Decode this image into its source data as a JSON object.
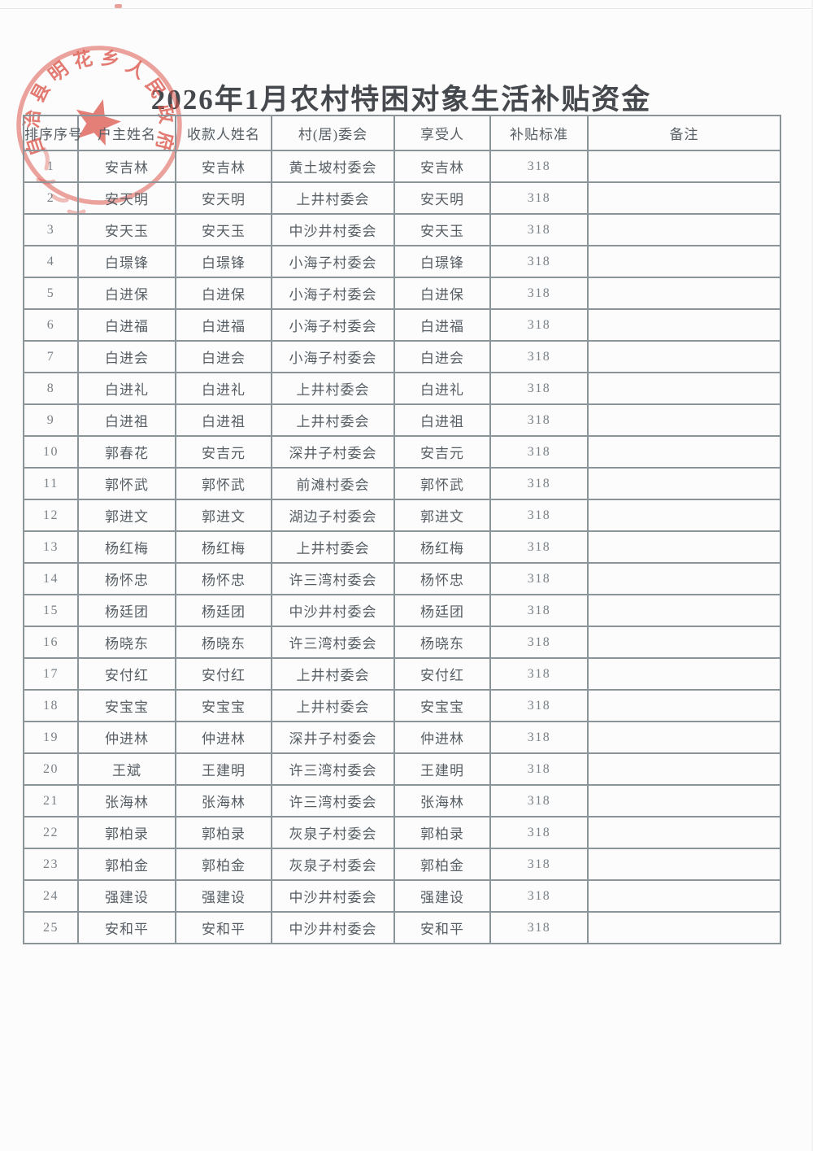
{
  "page": {
    "title": "2026年1月农村特困对象生活补贴资金"
  },
  "stamp": {
    "arc_text": "自治县明花乡人民政府",
    "shape": "round-official-seal",
    "center_icon": "star-icon",
    "color": "#dc564c"
  },
  "colors": {
    "seal_red": "#dc564c",
    "grid_line": "#8b9499",
    "body_text": "#565d63",
    "title_text": "#45484c"
  },
  "table": {
    "columns": [
      "排序序号",
      "户主姓名",
      "收款人姓名",
      "村(居)委会",
      "享受人",
      "补贴标准",
      "备注"
    ],
    "rows": [
      {
        "no": "1",
        "household": "安吉林",
        "payee": "安吉林",
        "village": "黄土坡村委会",
        "beneficiary": "安吉林",
        "standard": "318",
        "remark": ""
      },
      {
        "no": "2",
        "household": "安天明",
        "payee": "安天明",
        "village": "上井村委会",
        "beneficiary": "安天明",
        "standard": "318",
        "remark": ""
      },
      {
        "no": "3",
        "household": "安天玉",
        "payee": "安天玉",
        "village": "中沙井村委会",
        "beneficiary": "安天玉",
        "standard": "318",
        "remark": ""
      },
      {
        "no": "4",
        "household": "白璟锋",
        "payee": "白璟锋",
        "village": "小海子村委会",
        "beneficiary": "白璟锋",
        "standard": "318",
        "remark": ""
      },
      {
        "no": "5",
        "household": "白进保",
        "payee": "白进保",
        "village": "小海子村委会",
        "beneficiary": "白进保",
        "standard": "318",
        "remark": ""
      },
      {
        "no": "6",
        "household": "白进福",
        "payee": "白进福",
        "village": "小海子村委会",
        "beneficiary": "白进福",
        "standard": "318",
        "remark": ""
      },
      {
        "no": "7",
        "household": "白进会",
        "payee": "白进会",
        "village": "小海子村委会",
        "beneficiary": "白进会",
        "standard": "318",
        "remark": ""
      },
      {
        "no": "8",
        "household": "白进礼",
        "payee": "白进礼",
        "village": "上井村委会",
        "beneficiary": "白进礼",
        "standard": "318",
        "remark": ""
      },
      {
        "no": "9",
        "household": "白进祖",
        "payee": "白进祖",
        "village": "上井村委会",
        "beneficiary": "白进祖",
        "standard": "318",
        "remark": ""
      },
      {
        "no": "10",
        "household": "郭春花",
        "payee": "安吉元",
        "village": "深井子村委会",
        "beneficiary": "安吉元",
        "standard": "318",
        "remark": ""
      },
      {
        "no": "11",
        "household": "郭怀武",
        "payee": "郭怀武",
        "village": "前滩村委会",
        "beneficiary": "郭怀武",
        "standard": "318",
        "remark": ""
      },
      {
        "no": "12",
        "household": "郭进文",
        "payee": "郭进文",
        "village": "湖边子村委会",
        "beneficiary": "郭进文",
        "standard": "318",
        "remark": ""
      },
      {
        "no": "13",
        "household": "杨红梅",
        "payee": "杨红梅",
        "village": "上井村委会",
        "beneficiary": "杨红梅",
        "standard": "318",
        "remark": ""
      },
      {
        "no": "14",
        "household": "杨怀忠",
        "payee": "杨怀忠",
        "village": "许三湾村委会",
        "beneficiary": "杨怀忠",
        "standard": "318",
        "remark": ""
      },
      {
        "no": "15",
        "household": "杨廷团",
        "payee": "杨廷团",
        "village": "中沙井村委会",
        "beneficiary": "杨廷团",
        "standard": "318",
        "remark": ""
      },
      {
        "no": "16",
        "household": "杨晓东",
        "payee": "杨晓东",
        "village": "许三湾村委会",
        "beneficiary": "杨晓东",
        "standard": "318",
        "remark": ""
      },
      {
        "no": "17",
        "household": "安付红",
        "payee": "安付红",
        "village": "上井村委会",
        "beneficiary": "安付红",
        "standard": "318",
        "remark": ""
      },
      {
        "no": "18",
        "household": "安宝宝",
        "payee": "安宝宝",
        "village": "上井村委会",
        "beneficiary": "安宝宝",
        "standard": "318",
        "remark": ""
      },
      {
        "no": "19",
        "household": "仲进林",
        "payee": "仲进林",
        "village": "深井子村委会",
        "beneficiary": "仲进林",
        "standard": "318",
        "remark": ""
      },
      {
        "no": "20",
        "household": "王斌",
        "payee": "王建明",
        "village": "许三湾村委会",
        "beneficiary": "王建明",
        "standard": "318",
        "remark": ""
      },
      {
        "no": "21",
        "household": "张海林",
        "payee": "张海林",
        "village": "许三湾村委会",
        "beneficiary": "张海林",
        "standard": "318",
        "remark": ""
      },
      {
        "no": "22",
        "household": "郭柏录",
        "payee": "郭柏录",
        "village": "灰泉子村委会",
        "beneficiary": "郭柏录",
        "standard": "318",
        "remark": ""
      },
      {
        "no": "23",
        "household": "郭柏金",
        "payee": "郭柏金",
        "village": "灰泉子村委会",
        "beneficiary": "郭柏金",
        "standard": "318",
        "remark": ""
      },
      {
        "no": "24",
        "household": "强建设",
        "payee": "强建设",
        "village": "中沙井村委会",
        "beneficiary": "强建设",
        "standard": "318",
        "remark": ""
      },
      {
        "no": "25",
        "household": "安和平",
        "payee": "安和平",
        "village": "中沙井村委会",
        "beneficiary": "安和平",
        "standard": "318",
        "remark": ""
      }
    ]
  }
}
